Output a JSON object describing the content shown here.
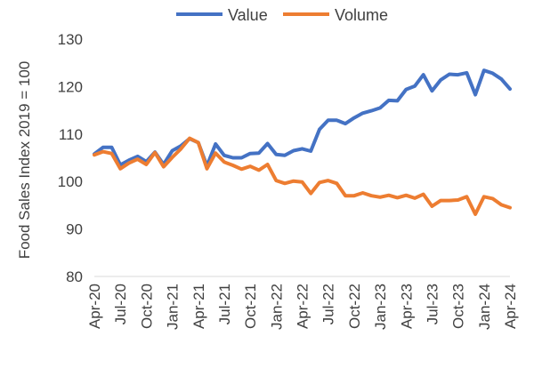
{
  "chart_data": {
    "type": "line",
    "title": "",
    "xlabel": "",
    "ylabel": "Food Sales Index 2019 = 100",
    "ylim": [
      80,
      130
    ],
    "y_ticks": [
      "80",
      "90",
      "100",
      "110",
      "120",
      "130"
    ],
    "grid": false,
    "legend_position": "top",
    "categories": [
      "Apr-20",
      "May-20",
      "Jun-20",
      "Jul-20",
      "Aug-20",
      "Sep-20",
      "Oct-20",
      "Nov-20",
      "Dec-20",
      "Jan-21",
      "Feb-21",
      "Mar-21",
      "Apr-21",
      "May-21",
      "Jun-21",
      "Jul-21",
      "Aug-21",
      "Sep-21",
      "Oct-21",
      "Nov-21",
      "Dec-21",
      "Jan-22",
      "Feb-22",
      "Mar-22",
      "Apr-22",
      "May-22",
      "Jun-22",
      "Jul-22",
      "Aug-22",
      "Sep-22",
      "Oct-22",
      "Nov-22",
      "Dec-22",
      "Jan-23",
      "Feb-23",
      "Mar-23",
      "Apr-23",
      "May-23",
      "Jun-23",
      "Jul-23",
      "Aug-23",
      "Sep-23",
      "Oct-23",
      "Nov-23",
      "Dec-23",
      "Jan-24",
      "Feb-24",
      "Mar-24",
      "Apr-24"
    ],
    "x_tick_labels": [
      "Apr-20",
      "Jul-20",
      "Oct-20",
      "Jan-21",
      "Apr-21",
      "Jul-21",
      "Oct-21",
      "Jan-22",
      "Apr-22",
      "Jul-22",
      "Oct-22",
      "Jan-23",
      "Apr-23",
      "Jul-23",
      "Oct-23",
      "Jan-24",
      "Apr-24"
    ],
    "series": [
      {
        "name": "Value",
        "color": "#4472C4",
        "values": [
          105.8,
          107.2,
          107.2,
          103.5,
          104.5,
          105.3,
          104.2,
          106.2,
          103.6,
          106.5,
          107.5,
          109.0,
          108.2,
          103.3,
          107.9,
          105.5,
          105.0,
          105.0,
          105.9,
          106.0,
          108.0,
          105.7,
          105.5,
          106.5,
          106.9,
          106.4,
          111.0,
          112.9,
          112.9,
          112.2,
          113.4,
          114.4,
          114.9,
          115.5,
          117.1,
          117.0,
          119.4,
          120.1,
          122.5,
          119.1,
          121.4,
          122.6,
          122.5,
          122.9,
          118.3,
          123.4,
          122.8,
          121.6,
          119.5
        ]
      },
      {
        "name": "Volume",
        "color": "#ED7D31",
        "values": [
          105.6,
          106.3,
          105.9,
          102.7,
          103.9,
          104.7,
          103.6,
          106.1,
          103.1,
          105.1,
          106.9,
          109.1,
          108.2,
          102.7,
          106.0,
          104.1,
          103.4,
          102.6,
          103.2,
          102.4,
          103.6,
          100.2,
          99.6,
          100.1,
          99.9,
          97.5,
          99.8,
          100.2,
          99.6,
          97.0,
          97.0,
          97.6,
          97.0,
          96.7,
          97.1,
          96.6,
          97.1,
          96.5,
          97.3,
          94.8,
          96.0,
          96.0,
          96.1,
          96.8,
          93.1,
          96.8,
          96.4,
          95.1,
          94.5
        ]
      }
    ]
  }
}
